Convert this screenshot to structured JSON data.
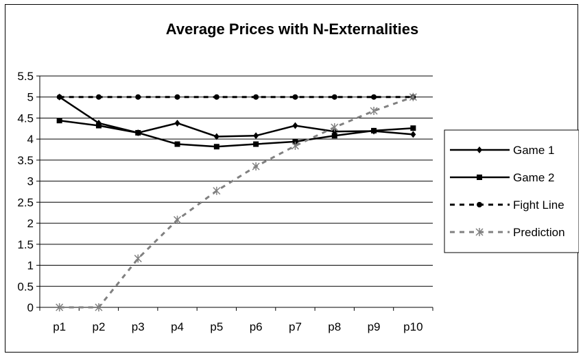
{
  "chart_data": {
    "type": "line",
    "title": "Average Prices with N-Externalities",
    "xlabel": "",
    "ylabel": "",
    "categories": [
      "p1",
      "p2",
      "p3",
      "p4",
      "p5",
      "p6",
      "p7",
      "p8",
      "p9",
      "p10"
    ],
    "ylim": [
      0,
      5.5
    ],
    "yticks": [
      "0",
      "0.5",
      "1",
      "1.5",
      "2",
      "2.5",
      "3",
      "3.5",
      "4",
      "4.5",
      "5",
      "5.5"
    ],
    "grid": true,
    "legend_position": "right",
    "series": [
      {
        "name": "Game 1",
        "values": [
          5.0,
          4.38,
          4.15,
          4.38,
          4.06,
          4.08,
          4.32,
          4.18,
          4.19,
          4.11
        ],
        "color": "#000000",
        "marker": "diamond",
        "dash": "solid"
      },
      {
        "name": "Game 2",
        "values": [
          4.44,
          4.32,
          4.15,
          3.88,
          3.82,
          3.88,
          3.94,
          4.08,
          4.2,
          4.26
        ],
        "color": "#000000",
        "marker": "square",
        "dash": "solid"
      },
      {
        "name": "Fight Line",
        "values": [
          5,
          5,
          5,
          5,
          5,
          5,
          5,
          5,
          5,
          5
        ],
        "color": "#000000",
        "marker": "circle",
        "dash": "dashed"
      },
      {
        "name": "Prediction",
        "values": [
          0,
          0,
          1.16,
          2.08,
          2.77,
          3.35,
          3.84,
          4.28,
          4.67,
          5.0
        ],
        "color": "#808080",
        "marker": "star",
        "dash": "dashed"
      }
    ]
  }
}
